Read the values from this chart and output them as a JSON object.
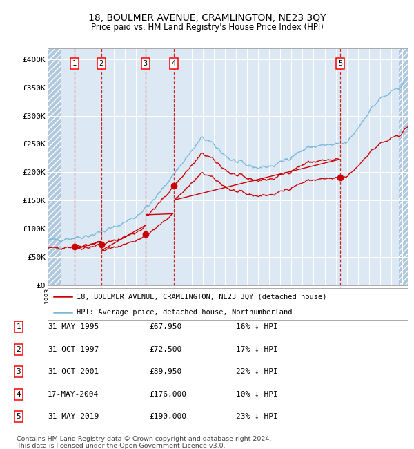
{
  "title": "18, BOULMER AVENUE, CRAMLINGTON, NE23 3QY",
  "subtitle": "Price paid vs. HM Land Registry's House Price Index (HPI)",
  "legend_line1": "18, BOULMER AVENUE, CRAMLINGTON, NE23 3QY (detached house)",
  "legend_line2": "HPI: Average price, detached house, Northumberland",
  "footer_line1": "Contains HM Land Registry data © Crown copyright and database right 2024.",
  "footer_line2": "This data is licensed under the Open Government Licence v3.0.",
  "transactions": [
    {
      "num": 1,
      "date": "31-MAY-1995",
      "year": 1995.41,
      "price": 67950
    },
    {
      "num": 2,
      "date": "31-OCT-1997",
      "year": 1997.83,
      "price": 72500
    },
    {
      "num": 3,
      "date": "31-OCT-2001",
      "year": 2001.83,
      "price": 89950
    },
    {
      "num": 4,
      "date": "17-MAY-2004",
      "year": 2004.37,
      "price": 176000
    },
    {
      "num": 5,
      "date": "31-MAY-2019",
      "year": 2019.41,
      "price": 190000
    }
  ],
  "transaction_label_rows": [
    [
      "1",
      "31-MAY-1995",
      "£67,950",
      "16% ↓ HPI"
    ],
    [
      "2",
      "31-OCT-1997",
      "£72,500",
      "17% ↓ HPI"
    ],
    [
      "3",
      "31-OCT-2001",
      "£89,950",
      "22% ↓ HPI"
    ],
    [
      "4",
      "17-MAY-2004",
      "£176,000",
      "10% ↓ HPI"
    ],
    [
      "5",
      "31-MAY-2019",
      "£190,000",
      "23% ↓ HPI"
    ]
  ],
  "ylim": [
    0,
    420000
  ],
  "yticks": [
    0,
    50000,
    100000,
    150000,
    200000,
    250000,
    300000,
    350000,
    400000
  ],
  "ytick_labels": [
    "£0",
    "£50K",
    "£100K",
    "£150K",
    "£200K",
    "£250K",
    "£300K",
    "£350K",
    "£400K"
  ],
  "xmin": 1993.0,
  "xmax": 2025.5,
  "hatch_left_end": 1994.2,
  "hatch_right_start": 2024.7,
  "plot_bg": "#dce9f5",
  "hatch_bg": "#b0c8de",
  "grid_color": "#ffffff",
  "hpi_color": "#7ab8d9",
  "price_color": "#cc0000",
  "marker_color": "#cc0000",
  "title_fontsize": 10,
  "subtitle_fontsize": 8.5
}
